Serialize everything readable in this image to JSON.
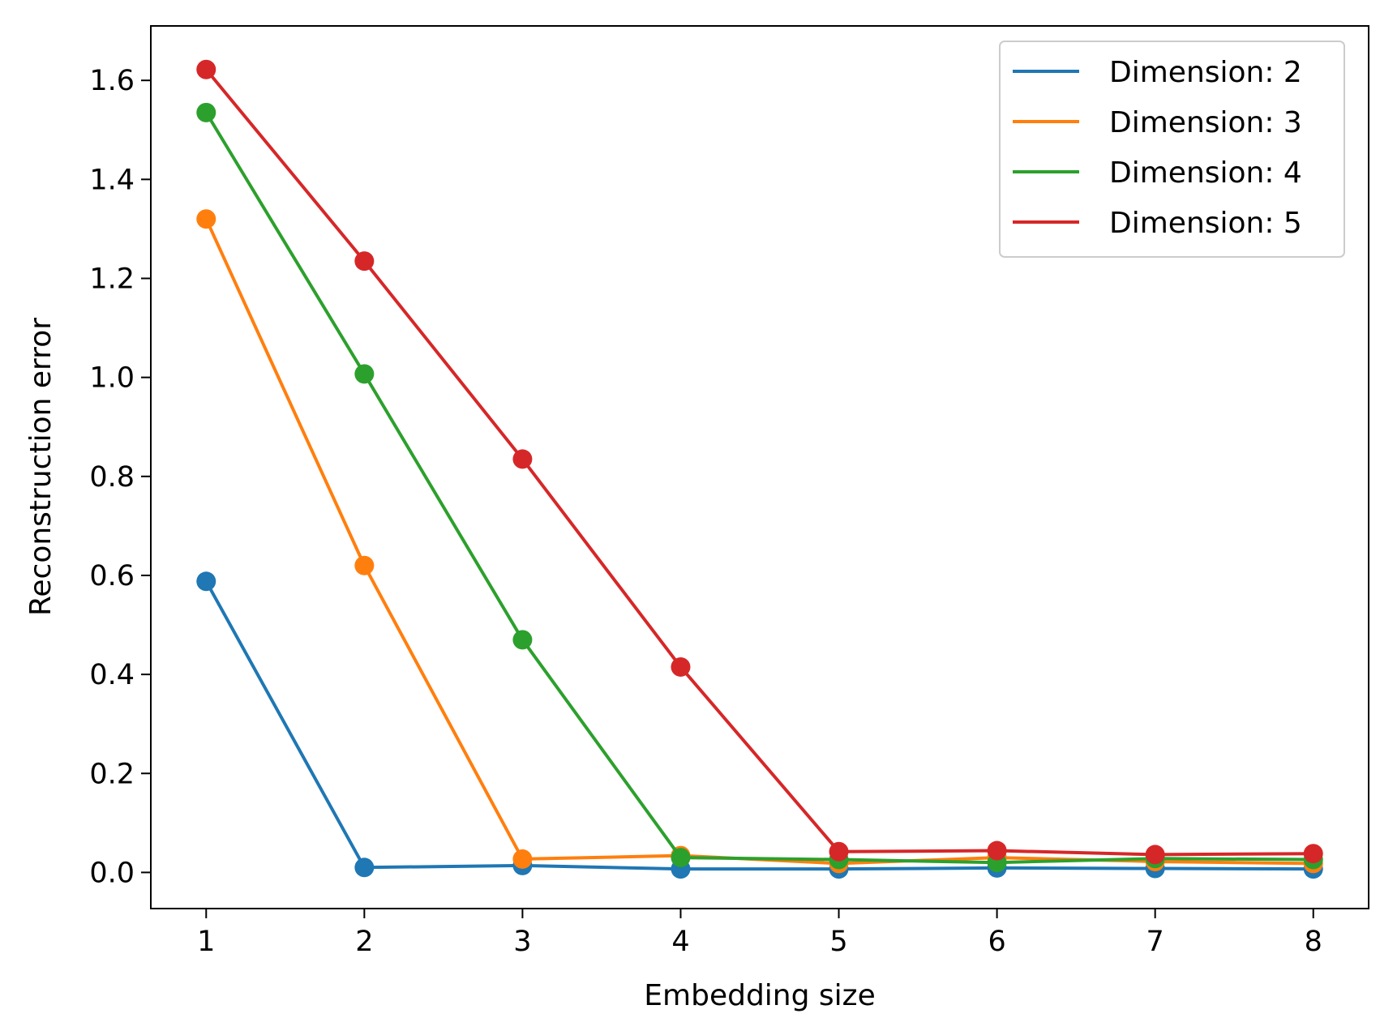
{
  "chart_data": {
    "type": "line",
    "title": "",
    "xlabel": "Embedding size",
    "ylabel": "Reconstruction error",
    "x": [
      1,
      2,
      3,
      4,
      5,
      6,
      7,
      8
    ],
    "xlim": [
      0.65,
      8.35
    ],
    "ylim": [
      -0.073,
      1.71
    ],
    "xticks": [
      "1",
      "2",
      "3",
      "4",
      "5",
      "6",
      "7",
      "8"
    ],
    "yticks": [
      "0.0",
      "0.2",
      "0.4",
      "0.6",
      "0.8",
      "1.0",
      "1.2",
      "1.4",
      "1.6"
    ],
    "grid": false,
    "legend_position": "top-right",
    "markers": true,
    "series": [
      {
        "name": "Dimension: 2",
        "color": "#1f77b4",
        "values": [
          0.588,
          0.01,
          0.014,
          0.007,
          0.007,
          0.009,
          0.008,
          0.007
        ]
      },
      {
        "name": "Dimension: 3",
        "color": "#ff7f0e",
        "values": [
          1.32,
          0.62,
          0.027,
          0.034,
          0.018,
          0.03,
          0.022,
          0.018
        ]
      },
      {
        "name": "Dimension: 4",
        "color": "#2ca02c",
        "values": [
          1.535,
          1.007,
          0.47,
          0.03,
          0.026,
          0.02,
          0.028,
          0.026
        ]
      },
      {
        "name": "Dimension: 5",
        "color": "#d62728",
        "values": [
          1.622,
          1.235,
          0.835,
          0.415,
          0.042,
          0.044,
          0.036,
          0.038
        ]
      }
    ]
  }
}
